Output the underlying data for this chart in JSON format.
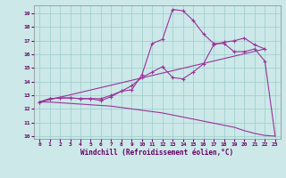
{
  "xlabel": "Windchill (Refroidissement éolien,°C)",
  "bg_color": "#cce8e8",
  "grid_color": "#99cccc",
  "line_color": "#993399",
  "xlim": [
    -0.5,
    23.5
  ],
  "ylim": [
    9.8,
    19.6
  ],
  "yticks": [
    10,
    11,
    12,
    13,
    14,
    15,
    16,
    17,
    18,
    19
  ],
  "xticks": [
    0,
    1,
    2,
    3,
    4,
    5,
    6,
    7,
    8,
    9,
    10,
    11,
    12,
    13,
    14,
    15,
    16,
    17,
    18,
    19,
    20,
    21,
    22,
    23
  ],
  "curve1_x": [
    0,
    1,
    2,
    3,
    4,
    5,
    6,
    7,
    8,
    9,
    10,
    11,
    12,
    13,
    14,
    15,
    16,
    17,
    18,
    19,
    20,
    21,
    22
  ],
  "curve1_y": [
    12.5,
    12.75,
    12.8,
    12.8,
    12.75,
    12.75,
    12.75,
    13.0,
    13.3,
    13.4,
    14.5,
    16.8,
    17.1,
    19.3,
    19.2,
    18.5,
    17.5,
    16.8,
    16.8,
    16.2,
    16.2,
    16.4,
    15.5
  ],
  "curve2_x": [
    0,
    1,
    2,
    3,
    4,
    5,
    6,
    7,
    8,
    9,
    10,
    11,
    12,
    13,
    14,
    15,
    16,
    17,
    18,
    19,
    20,
    21,
    22
  ],
  "curve2_y": [
    12.5,
    12.75,
    12.8,
    12.8,
    12.75,
    12.75,
    12.6,
    12.9,
    13.3,
    13.7,
    14.3,
    14.7,
    15.1,
    14.3,
    14.2,
    14.7,
    15.3,
    16.7,
    16.9,
    17.0,
    17.2,
    16.7,
    16.4
  ],
  "curve3_x": [
    0,
    22
  ],
  "curve3_y": [
    12.5,
    16.4
  ],
  "curve4_x": [
    0,
    1,
    2,
    3,
    4,
    5,
    6,
    7,
    8,
    9,
    10,
    11,
    12,
    13,
    14,
    15,
    16,
    17,
    18,
    19,
    20,
    21,
    22,
    23
  ],
  "curve4_y": [
    12.5,
    12.5,
    12.45,
    12.4,
    12.35,
    12.3,
    12.25,
    12.2,
    12.1,
    12.0,
    11.9,
    11.8,
    11.7,
    11.55,
    11.4,
    11.25,
    11.1,
    10.95,
    10.8,
    10.65,
    10.4,
    10.2,
    10.05,
    10.0
  ]
}
